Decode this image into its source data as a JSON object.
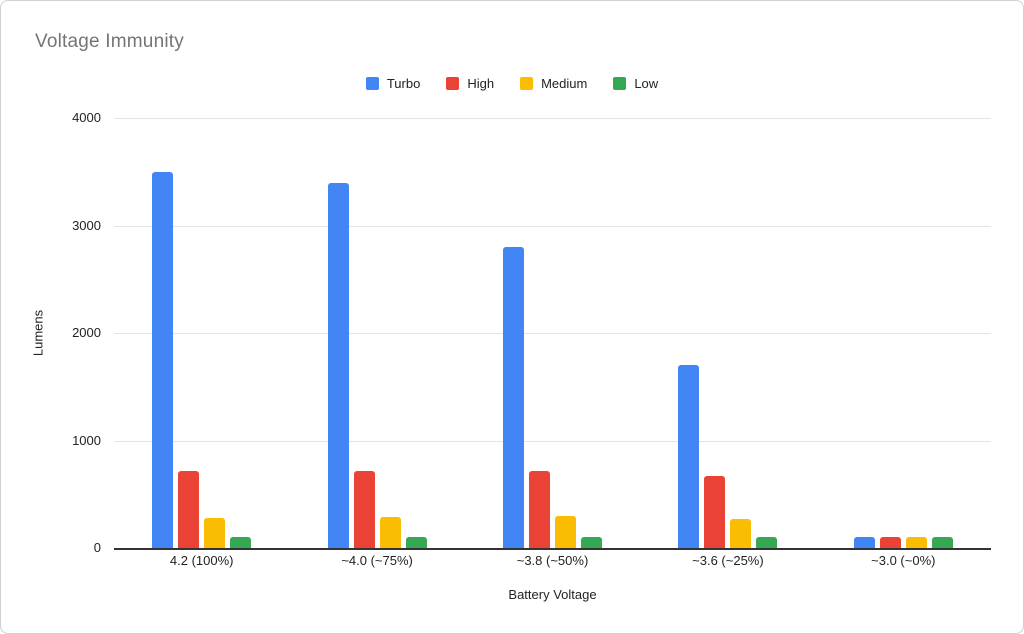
{
  "chart_data": {
    "type": "bar",
    "title": "Voltage Immunity",
    "xlabel": "Battery Voltage",
    "ylabel": "Lumens",
    "ylim": [
      0,
      4000
    ],
    "yticks": [
      0,
      1000,
      2000,
      3000,
      4000
    ],
    "grid": "horizontal",
    "legend_position": "top-center",
    "categories": [
      "4.2 (100%)",
      "~4.0 (~75%)",
      "~3.8 (~50%)",
      "~3.6 (~25%)",
      "~3.0 (~0%)"
    ],
    "series": [
      {
        "name": "Turbo",
        "color": "#4285F4",
        "values": [
          3500,
          3400,
          2800,
          1700,
          100
        ]
      },
      {
        "name": "High",
        "color": "#EA4335",
        "values": [
          720,
          720,
          720,
          670,
          100
        ]
      },
      {
        "name": "Medium",
        "color": "#FBBC04",
        "values": [
          280,
          290,
          300,
          270,
          100
        ]
      },
      {
        "name": "Low",
        "color": "#34A853",
        "values": [
          100,
          100,
          100,
          100,
          100
        ]
      }
    ]
  },
  "theme": {
    "title_color": "#757575",
    "axis_text_color": "#222222",
    "gridline_color": "#e4e4e4",
    "axis_line_color": "#333333",
    "card_border_color": "#cdd0d4"
  }
}
